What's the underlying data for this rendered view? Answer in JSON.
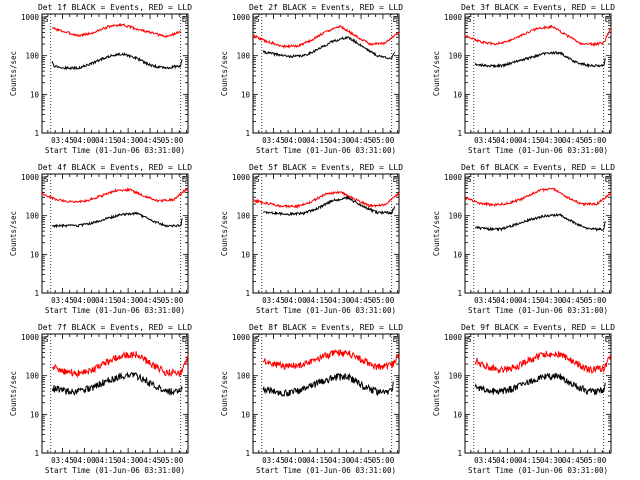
{
  "chart_data": [
    {
      "type": "line",
      "title": "Det 1f BLACK = Events, RED = LLD",
      "xlabel": "Start Time (01-Jun-06 03:31:00)",
      "ylabel": "Counts/sec",
      "x_tick_labels": [
        "03:45",
        "04:00",
        "04:15",
        "04:30",
        "04:45",
        "05:00"
      ],
      "y_tick_labels": [
        "1",
        "10",
        "100",
        "1000"
      ],
      "x_unit": "minutes after 03:31:00",
      "xlim": [
        0,
        100
      ],
      "ylim": [
        1,
        1200
      ],
      "y_scale": "log",
      "corner_markers": [
        "S",
        "E"
      ],
      "vertical_marker_lines": [
        6,
        95
      ],
      "series": [
        {
          "color": "#ff0000",
          "x": [
            7,
            15,
            25,
            35,
            45,
            55,
            65,
            75,
            85,
            95
          ],
          "y": [
            520,
            420,
            330,
            390,
            560,
            640,
            490,
            390,
            310,
            420
          ]
        },
        {
          "color": "#000000",
          "x": [
            7,
            8,
            15,
            25,
            35,
            45,
            55,
            65,
            75,
            85,
            95,
            96
          ],
          "y": [
            75,
            55,
            48,
            48,
            65,
            95,
            112,
            85,
            55,
            48,
            55,
            85
          ]
        }
      ]
    },
    {
      "type": "line",
      "title": "Det 2f BLACK = Events, RED = LLD",
      "xlabel": "Start Time (01-Jun-06 03:31:00)",
      "ylabel": "Counts/sec",
      "x_tick_labels": [
        "03:45",
        "04:00",
        "04:15",
        "04:30",
        "04:45",
        "05:00"
      ],
      "y_tick_labels": [
        "1",
        "10",
        "100",
        "1000"
      ],
      "x_unit": "minutes after 03:31:00",
      "xlim": [
        0,
        100
      ],
      "ylim": [
        1,
        1200
      ],
      "y_scale": "log",
      "corner_markers": [
        "S",
        "E"
      ],
      "vertical_marker_lines": [
        6,
        95
      ],
      "series": [
        {
          "color": "#ff0000",
          "x": [
            0,
            10,
            20,
            30,
            40,
            50,
            60,
            70,
            80,
            90,
            100
          ],
          "y": [
            330,
            230,
            175,
            175,
            250,
            420,
            580,
            330,
            200,
            210,
            400
          ]
        },
        {
          "color": "#000000",
          "x": [
            7,
            15,
            25,
            35,
            45,
            55,
            65,
            75,
            85,
            95,
            97
          ],
          "y": [
            125,
            110,
            95,
            100,
            150,
            240,
            300,
            175,
            100,
            85,
            120
          ]
        }
      ]
    },
    {
      "type": "line",
      "title": "Det 3f BLACK = Events, RED = LLD",
      "xlabel": "Start Time (01-Jun-06 03:31:00)",
      "ylabel": "Counts/sec",
      "x_tick_labels": [
        "03:45",
        "04:00",
        "04:15",
        "04:30",
        "04:45",
        "05:00"
      ],
      "y_tick_labels": [
        "1",
        "10",
        "100",
        "1000"
      ],
      "x_unit": "minutes after 03:31:00",
      "xlim": [
        0,
        100
      ],
      "ylim": [
        1,
        1200
      ],
      "y_scale": "log",
      "corner_markers": [
        "S",
        "E"
      ],
      "vertical_marker_lines": [
        6,
        95
      ],
      "series": [
        {
          "color": "#ff0000",
          "x": [
            0,
            10,
            20,
            30,
            40,
            50,
            60,
            70,
            80,
            90,
            95,
            100
          ],
          "y": [
            340,
            230,
            200,
            240,
            350,
            520,
            560,
            330,
            200,
            200,
            210,
            560
          ]
        },
        {
          "color": "#000000",
          "x": [
            7,
            15,
            25,
            35,
            45,
            55,
            65,
            75,
            85,
            95,
            96
          ],
          "y": [
            60,
            55,
            55,
            70,
            90,
            115,
            120,
            70,
            55,
            55,
            85
          ]
        }
      ]
    },
    {
      "type": "line",
      "title": "Det 4f BLACK = Events, RED = LLD",
      "xlabel": "Start Time (01-Jun-06 03:31:00)",
      "ylabel": "Counts/sec",
      "x_tick_labels": [
        "03:45",
        "04:00",
        "04:15",
        "04:30",
        "04:45",
        "05:00"
      ],
      "y_tick_labels": [
        "1",
        "10",
        "100",
        "1000"
      ],
      "x_unit": "minutes after 03:31:00",
      "xlim": [
        0,
        100
      ],
      "ylim": [
        1,
        1200
      ],
      "y_scale": "log",
      "corner_markers": [
        "S",
        "E"
      ],
      "vertical_marker_lines": [
        6,
        95
      ],
      "series": [
        {
          "color": "#ff0000",
          "x": [
            0,
            10,
            20,
            30,
            40,
            50,
            60,
            70,
            80,
            90,
            100
          ],
          "y": [
            370,
            260,
            230,
            240,
            320,
            450,
            470,
            320,
            240,
            260,
            520
          ]
        },
        {
          "color": "#000000",
          "x": [
            7,
            15,
            25,
            35,
            45,
            55,
            65,
            75,
            85,
            95,
            96
          ],
          "y": [
            55,
            55,
            55,
            65,
            85,
            110,
            115,
            75,
            55,
            55,
            85
          ]
        }
      ]
    },
    {
      "type": "line",
      "title": "Det 5f BLACK = Events, RED = LLD",
      "xlabel": "Start Time (01-Jun-06 03:31:00)",
      "ylabel": "Counts/sec",
      "x_tick_labels": [
        "03:45",
        "04:00",
        "04:15",
        "04:30",
        "04:45",
        "05:00"
      ],
      "y_tick_labels": [
        "1",
        "10",
        "100",
        "1000"
      ],
      "x_unit": "minutes after 03:31:00",
      "xlim": [
        0,
        100
      ],
      "ylim": [
        1,
        1200
      ],
      "y_scale": "log",
      "corner_markers": [
        "S",
        "E"
      ],
      "vertical_marker_lines": [
        6,
        95
      ],
      "series": [
        {
          "color": "#ff0000",
          "x": [
            0,
            10,
            20,
            30,
            40,
            50,
            60,
            70,
            80,
            90,
            100
          ],
          "y": [
            250,
            210,
            175,
            175,
            230,
            370,
            410,
            260,
            180,
            190,
            380
          ]
        },
        {
          "color": "#000000",
          "x": [
            7,
            15,
            25,
            35,
            45,
            55,
            65,
            75,
            85,
            95,
            97
          ],
          "y": [
            125,
            115,
            110,
            115,
            160,
            250,
            290,
            175,
            120,
            120,
            170
          ]
        }
      ]
    },
    {
      "type": "line",
      "title": "Det 6f BLACK = Events, RED = LLD",
      "xlabel": "Start Time (01-Jun-06 03:31:00)",
      "ylabel": "Counts/sec",
      "x_tick_labels": [
        "03:45",
        "04:00",
        "04:15",
        "04:30",
        "04:45",
        "05:00"
      ],
      "y_tick_labels": [
        "1",
        "10",
        "100",
        "1000"
      ],
      "x_unit": "minutes after 03:31:00",
      "xlim": [
        0,
        100
      ],
      "ylim": [
        1,
        1200
      ],
      "y_scale": "log",
      "corner_markers": [
        "S",
        "E"
      ],
      "vertical_marker_lines": [
        6,
        95
      ],
      "series": [
        {
          "color": "#ff0000",
          "x": [
            0,
            10,
            20,
            30,
            40,
            50,
            60,
            70,
            80,
            90,
            100
          ],
          "y": [
            290,
            210,
            190,
            210,
            280,
            440,
            520,
            300,
            200,
            200,
            380
          ]
        },
        {
          "color": "#000000",
          "x": [
            7,
            15,
            25,
            35,
            45,
            55,
            65,
            75,
            85,
            95,
            96
          ],
          "y": [
            50,
            45,
            45,
            60,
            80,
            100,
            105,
            65,
            45,
            45,
            75
          ]
        }
      ]
    },
    {
      "type": "line",
      "title": "Det 7f BLACK = Events, RED = LLD",
      "xlabel": "Start Time (01-Jun-06 03:31:00)",
      "ylabel": "Counts/sec",
      "x_tick_labels": [
        "03:45",
        "04:00",
        "04:15",
        "04:30",
        "04:45",
        "05:00"
      ],
      "y_tick_labels": [
        "1",
        "10",
        "100",
        "1000"
      ],
      "x_unit": "minutes after 03:31:00",
      "xlim": [
        0,
        100
      ],
      "ylim": [
        1,
        1200
      ],
      "y_scale": "log",
      "corner_markers": [
        "S",
        "E"
      ],
      "vertical_marker_lines": [
        6,
        95
      ],
      "series": [
        {
          "color": "#ff0000",
          "x": [
            7,
            15,
            25,
            35,
            45,
            55,
            65,
            75,
            85,
            95,
            100
          ],
          "y": [
            170,
            130,
            115,
            140,
            230,
            340,
            350,
            200,
            120,
            120,
            330
          ]
        },
        {
          "color": "#000000",
          "x": [
            7,
            15,
            25,
            35,
            45,
            55,
            65,
            75,
            85,
            95,
            96
          ],
          "y": [
            50,
            40,
            38,
            50,
            75,
            100,
            100,
            60,
            40,
            40,
            55
          ]
        }
      ]
    },
    {
      "type": "line",
      "title": "Det 8f BLACK = Events, RED = LLD",
      "xlabel": "Start Time (01-Jun-06 03:31:00)",
      "ylabel": "Counts/sec",
      "x_tick_labels": [
        "03:45",
        "04:00",
        "04:15",
        "04:30",
        "04:45",
        "05:00"
      ],
      "y_tick_labels": [
        "1",
        "10",
        "100",
        "1000"
      ],
      "x_unit": "minutes after 03:31:00",
      "xlim": [
        0,
        100
      ],
      "ylim": [
        1,
        1200
      ],
      "y_scale": "log",
      "corner_markers": [
        "S",
        "E"
      ],
      "vertical_marker_lines": [
        6,
        95
      ],
      "series": [
        {
          "color": "#ff0000",
          "x": [
            7,
            15,
            25,
            35,
            45,
            55,
            65,
            75,
            85,
            95,
            100
          ],
          "y": [
            260,
            200,
            170,
            200,
            280,
            380,
            390,
            250,
            170,
            180,
            370
          ]
        },
        {
          "color": "#000000",
          "x": [
            7,
            15,
            25,
            35,
            45,
            55,
            65,
            75,
            85,
            95,
            96
          ],
          "y": [
            45,
            38,
            35,
            45,
            65,
            90,
            95,
            55,
            38,
            40,
            60
          ]
        }
      ]
    },
    {
      "type": "line",
      "title": "Det 9f BLACK = Events, RED = LLD",
      "xlabel": "Start Time (01-Jun-06 03:31:00)",
      "ylabel": "Counts/sec",
      "x_tick_labels": [
        "03:45",
        "04:00",
        "04:15",
        "04:30",
        "04:45",
        "05:00"
      ],
      "y_tick_labels": [
        "1",
        "10",
        "100",
        "1000"
      ],
      "x_unit": "minutes after 03:31:00",
      "xlim": [
        0,
        100
      ],
      "ylim": [
        1,
        1200
      ],
      "y_scale": "log",
      "corner_markers": [
        "S",
        "E"
      ],
      "vertical_marker_lines": [
        6,
        95
      ],
      "series": [
        {
          "color": "#ff0000",
          "x": [
            7,
            15,
            25,
            35,
            45,
            55,
            65,
            75,
            85,
            95,
            100
          ],
          "y": [
            240,
            170,
            140,
            170,
            260,
            360,
            360,
            220,
            140,
            150,
            330
          ]
        },
        {
          "color": "#000000",
          "x": [
            7,
            15,
            25,
            35,
            45,
            55,
            65,
            75,
            85,
            95,
            96
          ],
          "y": [
            55,
            40,
            38,
            48,
            70,
            95,
            95,
            55,
            38,
            40,
            60
          ]
        }
      ]
    }
  ]
}
